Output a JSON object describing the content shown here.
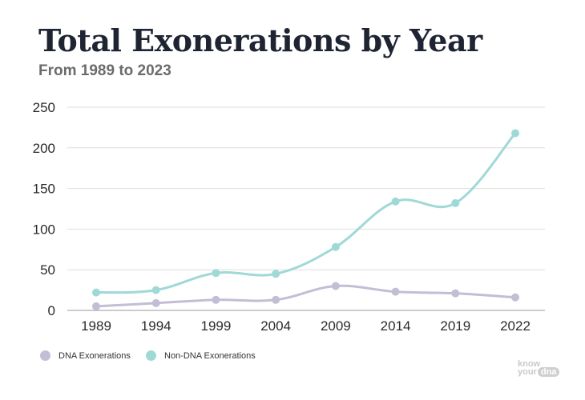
{
  "title": "Total Exonerations by Year",
  "subtitle": "From 1989 to 2023",
  "legend": [
    {
      "label": "DNA Exonerations",
      "color": "#c3bdd6"
    },
    {
      "label": "Non-DNA Exonerations",
      "color": "#9fd9d6"
    }
  ],
  "logo": {
    "line1": "know",
    "line2a": "your",
    "line2b": "dna"
  },
  "chart_data": {
    "type": "line",
    "categories": [
      "1989",
      "1994",
      "1999",
      "2004",
      "2009",
      "2014",
      "2019",
      "2022"
    ],
    "ylim": [
      0,
      250
    ],
    "yticks": [
      0,
      50,
      100,
      150,
      200,
      250
    ],
    "grid": true,
    "legend_position": "bottom-left",
    "series": [
      {
        "name": "DNA Exonerations",
        "color": "#c3bdd6",
        "values": [
          5,
          9,
          13,
          13,
          30,
          23,
          21,
          16
        ]
      },
      {
        "name": "Non-DNA Exonerations",
        "color": "#9fd9d6",
        "values": [
          22,
          25,
          46,
          45,
          78,
          134,
          132,
          218
        ]
      }
    ]
  }
}
